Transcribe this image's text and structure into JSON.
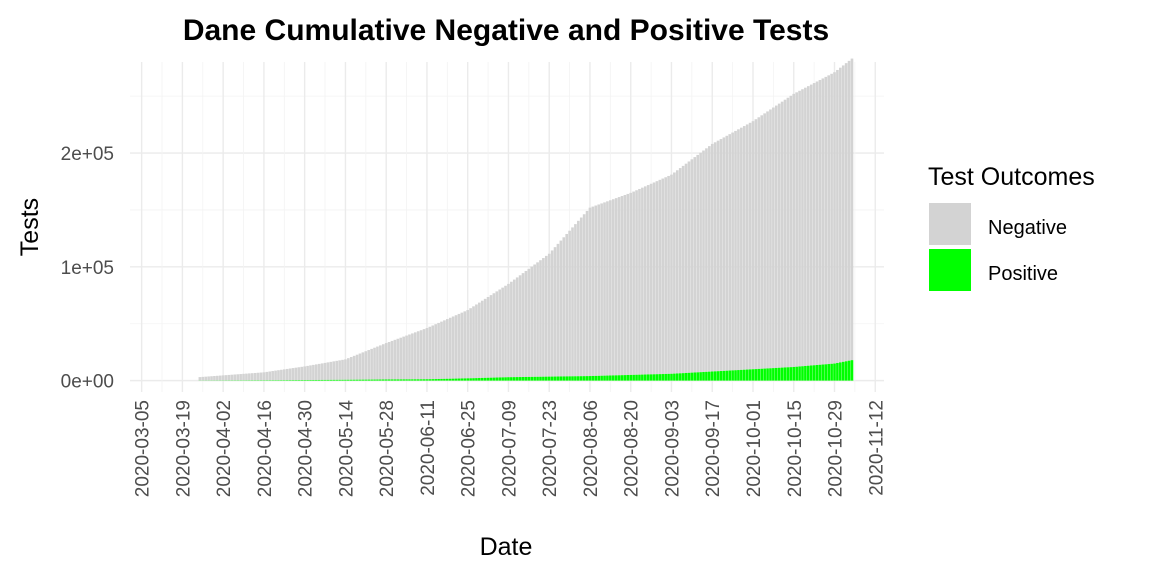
{
  "chart_data": {
    "type": "bar",
    "stacked": true,
    "title": "Dane Cumulative Negative and Positive Tests",
    "xlabel": "Date",
    "ylabel": "Tests",
    "x_range": [
      "2020-03-01",
      "2020-11-15"
    ],
    "ylim": [
      -10000,
      280000
    ],
    "y_ticks": [
      0,
      100000,
      200000
    ],
    "y_tick_labels": [
      "0e+00",
      "1e+05",
      "2e+05"
    ],
    "x_ticks": [
      "2020-03-05",
      "2020-03-19",
      "2020-04-02",
      "2020-04-16",
      "2020-04-30",
      "2020-05-14",
      "2020-05-28",
      "2020-06-11",
      "2020-06-25",
      "2020-07-09",
      "2020-07-23",
      "2020-08-06",
      "2020-08-20",
      "2020-09-03",
      "2020-09-17",
      "2020-10-01",
      "2020-10-15",
      "2020-10-29",
      "2020-11-12"
    ],
    "grid": true,
    "legend": {
      "title": "Test Outcomes",
      "position": "right",
      "entries": [
        {
          "label": "Negative",
          "color": "#d3d3d3"
        },
        {
          "label": "Positive",
          "color": "#00ff00"
        }
      ]
    },
    "series_points": {
      "dates": [
        "2020-03-01",
        "2020-03-20",
        "2020-03-25",
        "2020-04-05",
        "2020-04-16",
        "2020-04-30",
        "2020-05-14",
        "2020-05-28",
        "2020-06-11",
        "2020-06-25",
        "2020-07-09",
        "2020-07-23",
        "2020-08-06",
        "2020-08-20",
        "2020-09-03",
        "2020-09-17",
        "2020-10-01",
        "2020-10-15",
        "2020-10-29",
        "2020-11-04"
      ],
      "negative": [
        0,
        0,
        3000,
        5000,
        7000,
        12000,
        18000,
        32000,
        45000,
        60000,
        82000,
        108000,
        148000,
        160000,
        175000,
        200000,
        218000,
        240000,
        256000,
        265000
      ],
      "positive": [
        0,
        0,
        100,
        200,
        300,
        500,
        700,
        1000,
        1200,
        2000,
        3000,
        3500,
        4000,
        5000,
        6000,
        8000,
        10000,
        12000,
        15000,
        18000
      ]
    }
  }
}
